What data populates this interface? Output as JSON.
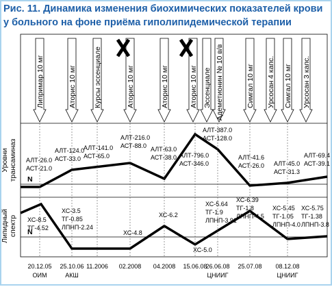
{
  "header": {
    "title_lines": [
      "Рис. 11. Динамика изменения биохимических показателей крови",
      "у больного на фоне приёма гиполипидемической терапии"
    ]
  },
  "interventions": [
    {
      "label": "Липримар 10 мг",
      "crossed": false
    },
    {
      "label": "Аторис 10 мг",
      "crossed": false
    },
    {
      "label": "Курсы эссенциале",
      "crossed": false
    },
    {
      "label": "Аторис 10 мг",
      "crossed": true
    },
    {
      "label": "Аторис 10 мг",
      "crossed": false
    },
    {
      "label": "Аторис 10 мг",
      "crossed": true
    },
    {
      "label": "Эссенциале",
      "crossed": false
    },
    {
      "label": "Адеметионин № 10 в/в",
      "crossed": false
    },
    {
      "label": "Симгал 10 мг",
      "crossed": false
    },
    {
      "label": "Урсосан 4 капс.",
      "crossed": false
    },
    {
      "label": "Симгал 10 мг",
      "crossed": false
    },
    {
      "label": "Урсосан 3 капс.",
      "crossed": false
    }
  ],
  "panels": [
    {
      "title_lines": [
        "Уровни",
        "трансаминаз"
      ],
      "norm": "N",
      "annotations": [
        [
          "АЛТ-26.0",
          "АСТ-21.0"
        ],
        [
          "АЛТ-124.0",
          "АСТ-33.0"
        ],
        [
          "АЛТ-141.0",
          "АСТ-65.0"
        ],
        [
          "АЛТ-216.0",
          "АСТ-88.0"
        ],
        [
          "АЛТ-63.0",
          "АСТ-38.0"
        ],
        [
          "АЛТ-796.0",
          "АСТ-346.0"
        ],
        [
          "АЛТ-387.0",
          "АСТ-128.0"
        ],
        [
          "АЛТ-41.6",
          "АСТ-26.0"
        ],
        [
          "АЛТ-45.0",
          "АСТ-31.3"
        ],
        [
          "АЛТ-69.4",
          "АСТ-39.1"
        ]
      ]
    },
    {
      "title_lines": [
        "Липидный",
        "спектр"
      ],
      "norm": "N",
      "annotations": [
        [
          "ХС-8.5",
          "ТГ-4.52"
        ],
        [
          "ХС-3.5",
          "ТГ-0.85",
          "ЛПНП-2.24"
        ],
        [
          "ХС-4.8"
        ],
        [
          "ХС-6.2"
        ],
        [
          "ХС-5.0"
        ],
        [
          "ХС-5.64",
          "ТГ-1.9",
          "ЛПНП-3.91"
        ],
        [
          "ХС-6.39",
          "ТГ-1.8",
          "ЛПНП-4.5"
        ],
        [
          "ХС-5.45",
          "ТГ-1.05",
          "ЛПНП-4.0"
        ],
        [
          "ХС-5.75",
          "ТГ-1.38",
          "ЛПНП-3.8"
        ]
      ]
    }
  ],
  "timeline": [
    {
      "date": "20.12.05",
      "note": "ОИМ"
    },
    {
      "date": "25.10.06",
      "note": "АКШ"
    },
    {
      "date": "11.2006"
    },
    {
      "date": "02.2008"
    },
    {
      "date": "04.2008"
    },
    {
      "date": "15.06.08"
    },
    {
      "date": "26.06.08",
      "note": "ЦНИИГ"
    },
    {
      "date": "25.07.08"
    },
    {
      "date": "08.12.08",
      "note": "ЦНИИГ"
    }
  ]
}
